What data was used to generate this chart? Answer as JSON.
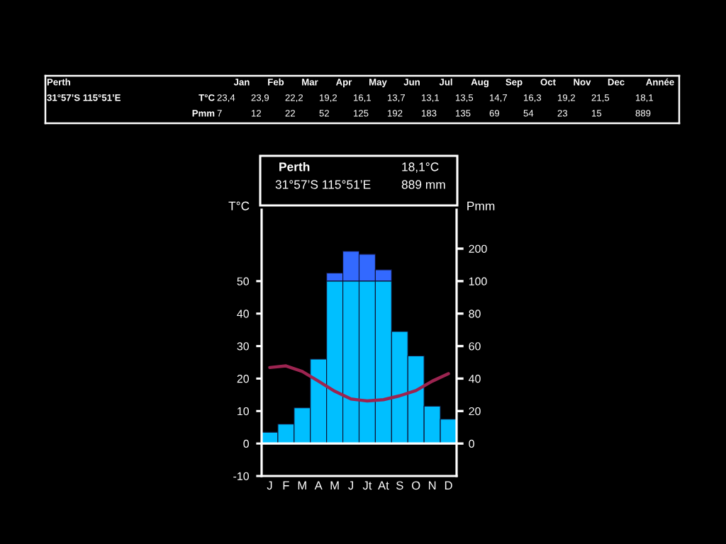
{
  "chart_data": [
    {
      "type": "other",
      "title": "Perth",
      "subtitle": "31°57’S 115°51’E",
      "categories": [
        "Jan",
        "Feb",
        "Mar",
        "Apr",
        "May",
        "Jun",
        "Jul",
        "Aug",
        "Sep",
        "Oct",
        "Nov",
        "Dec",
        "Année"
      ],
      "series": [
        {
          "name": "T°C",
          "values": [
            23.4,
            23.9,
            22.2,
            19.2,
            16.1,
            13.7,
            13.1,
            13.5,
            14.7,
            16.3,
            19.2,
            21.5,
            18.1
          ],
          "value_labels": [
            "23,4",
            "23,9",
            "22,2",
            "19,2",
            "16,1",
            "13,7",
            "13,1",
            "13,5",
            "14,7",
            "16,3",
            "19,2",
            "21,5",
            "18,1"
          ]
        },
        {
          "name": "Pmm",
          "values": [
            7,
            12,
            22,
            52,
            125,
            192,
            183,
            135,
            69,
            54,
            23,
            15,
            889
          ],
          "value_labels": [
            "7",
            "12",
            "22",
            "52",
            "125",
            "192",
            "183",
            "135",
            "69",
            "54",
            "23",
            "15",
            "889"
          ]
        }
      ]
    },
    {
      "type": "bar",
      "title": "Perth",
      "subtitle": "31°57’S 115°51’E",
      "annotations": [
        "18,1°C",
        "889 mm"
      ],
      "ylabel": "T°C",
      "y2label": "Pmm",
      "categories": [
        "J",
        "F",
        "M",
        "A",
        "M",
        "J",
        "Jt",
        "At",
        "S",
        "O",
        "N",
        "D"
      ],
      "series": [
        {
          "color": "#00bfff",
          "axis": "y2",
          "values": [
            7,
            12,
            22,
            52,
            100,
            100,
            100,
            100,
            69,
            54,
            23,
            15
          ]
        },
        {
          "color": "#3369ff",
          "axis": "y3",
          "base": [
            null,
            null,
            null,
            null,
            100,
            100,
            100,
            100,
            null,
            null,
            null,
            null
          ],
          "values": [
            null,
            null,
            null,
            null,
            25,
            92,
            83,
            35,
            null,
            null,
            null,
            null
          ]
        },
        {
          "type": "line",
          "color": "#9c2450",
          "values": [
            23.4,
            23.9,
            22.2,
            19.2,
            16.1,
            13.7,
            13.1,
            13.5,
            14.7,
            16.3,
            19.2,
            21.5
          ]
        }
      ],
      "ylim": [
        -10,
        72
      ],
      "yticks": [
        -10,
        0,
        10,
        20,
        30,
        40,
        50
      ],
      "y2lim": [
        -20,
        144
      ],
      "y2ticks": [
        0,
        20,
        40,
        60,
        80
      ],
      "y3lim": [
        -500,
        320
      ],
      "y3ticks": [
        100,
        200
      ],
      "ref_lines": [
        {
          "axis": "y",
          "value": 0,
          "color": "#ffffff"
        }
      ]
    }
  ]
}
